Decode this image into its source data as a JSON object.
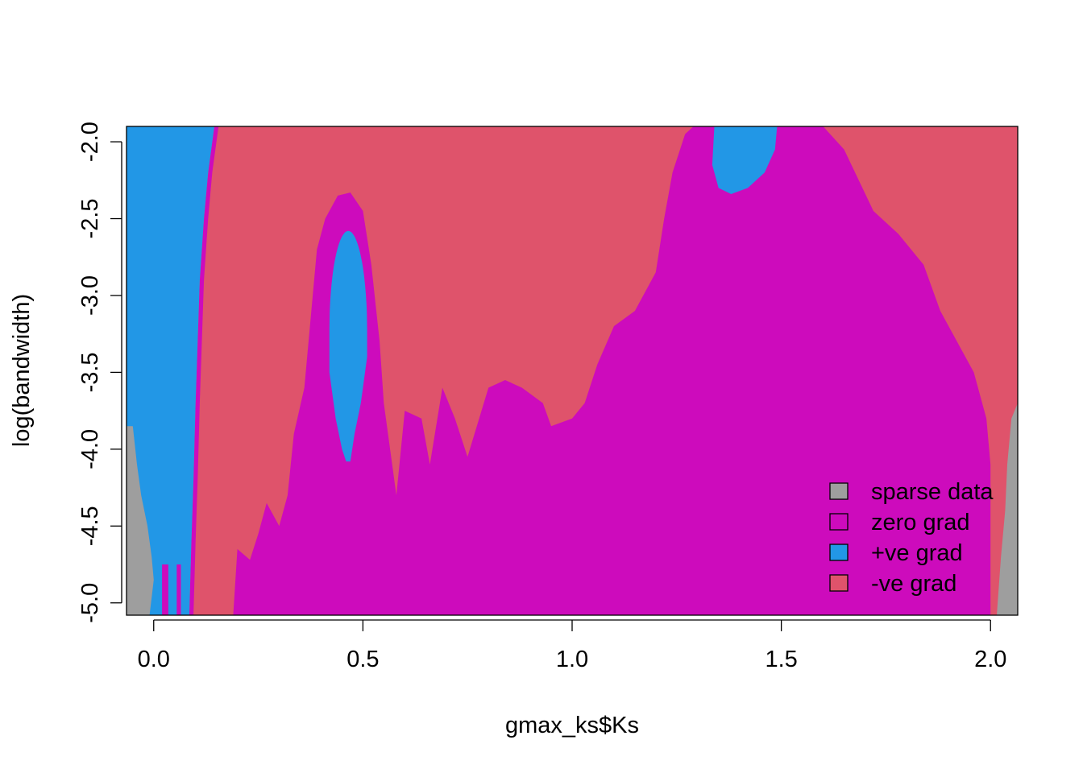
{
  "chart_data": {
    "type": "heatmap",
    "title": "",
    "xlabel": "gmax_ks$Ks",
    "ylabel": "log(bandwidth)",
    "xlim": [
      -0.065,
      2.065
    ],
    "ylim": [
      -5.08,
      -1.9
    ],
    "x_ticks": [
      0.0,
      0.5,
      1.0,
      1.5,
      2.0
    ],
    "x_tick_labels": [
      "0.0",
      "0.5",
      "1.0",
      "1.5",
      "2.0"
    ],
    "y_ticks": [
      -5.0,
      -4.5,
      -4.0,
      -3.5,
      -3.0,
      -2.5,
      -2.0
    ],
    "y_tick_labels": [
      "-5.0",
      "-4.5",
      "-4.0",
      "-3.5",
      "-3.0",
      "-2.5",
      "-2.0"
    ],
    "categories": [
      "sparse data",
      "zero grad",
      "+ve grad",
      "-ve grad"
    ],
    "colors": {
      "sparse data": "#9E9E9E",
      "zero grad": "#CD0BBC",
      "+ve grad": "#2297E6",
      "-ve grad": "#DF536B"
    },
    "legend": {
      "position": "bottom-right",
      "entries": [
        "sparse data",
        "zero grad",
        "+ve grad",
        "-ve grad"
      ]
    },
    "region_boundaries": {
      "sparse_left": [
        [
          -0.065,
          -3.85
        ],
        [
          -0.05,
          -3.85
        ],
        [
          -0.04,
          -4.1
        ],
        [
          -0.03,
          -4.3
        ],
        [
          -0.015,
          -4.5
        ],
        [
          -0.005,
          -4.7
        ],
        [
          0.0,
          -4.85
        ],
        [
          -0.01,
          -5.08
        ]
      ],
      "blue_left_right_edge": [
        [
          0.145,
          -1.9
        ],
        [
          0.13,
          -2.2
        ],
        [
          0.12,
          -2.5
        ],
        [
          0.11,
          -2.9
        ],
        [
          0.105,
          -3.3
        ],
        [
          0.1,
          -3.7
        ],
        [
          0.095,
          -4.2
        ],
        [
          0.09,
          -4.6
        ],
        [
          0.085,
          -5.08
        ]
      ],
      "blue_dome": {
        "center_x": 0.465,
        "center_y": -3.22,
        "half_width": 0.045,
        "y_top": -2.58,
        "y_bottom": -4.08
      },
      "blue_top_right": [
        [
          1.34,
          -1.9
        ],
        [
          1.49,
          -1.9
        ],
        [
          1.485,
          -2.05
        ],
        [
          1.46,
          -2.2
        ],
        [
          1.42,
          -2.3
        ],
        [
          1.38,
          -2.34
        ],
        [
          1.35,
          -2.3
        ],
        [
          1.335,
          -2.15
        ]
      ],
      "magenta_top_envelope": [
        [
          0.19,
          -5.08
        ],
        [
          0.2,
          -4.65
        ],
        [
          0.23,
          -4.72
        ],
        [
          0.25,
          -4.55
        ],
        [
          0.27,
          -4.35
        ],
        [
          0.3,
          -4.5
        ],
        [
          0.32,
          -4.3
        ],
        [
          0.335,
          -3.9
        ],
        [
          0.36,
          -3.6
        ],
        [
          0.37,
          -3.3
        ],
        [
          0.38,
          -3.0
        ],
        [
          0.39,
          -2.7
        ],
        [
          0.41,
          -2.5
        ],
        [
          0.44,
          -2.35
        ],
        [
          0.47,
          -2.33
        ],
        [
          0.5,
          -2.45
        ],
        [
          0.52,
          -2.8
        ],
        [
          0.54,
          -3.3
        ],
        [
          0.55,
          -3.7
        ],
        [
          0.58,
          -4.3
        ],
        [
          0.6,
          -3.75
        ],
        [
          0.64,
          -3.8
        ],
        [
          0.66,
          -4.1
        ],
        [
          0.69,
          -3.6
        ],
        [
          0.72,
          -3.8
        ],
        [
          0.75,
          -4.05
        ],
        [
          0.8,
          -3.6
        ],
        [
          0.84,
          -3.55
        ],
        [
          0.88,
          -3.6
        ],
        [
          0.93,
          -3.7
        ],
        [
          0.95,
          -3.85
        ],
        [
          1.0,
          -3.8
        ],
        [
          1.03,
          -3.7
        ],
        [
          1.06,
          -3.45
        ],
        [
          1.1,
          -3.2
        ],
        [
          1.15,
          -3.1
        ],
        [
          1.2,
          -2.85
        ],
        [
          1.22,
          -2.5
        ],
        [
          1.24,
          -2.2
        ],
        [
          1.27,
          -1.95
        ],
        [
          1.29,
          -1.9
        ],
        [
          1.6,
          -1.9
        ],
        [
          1.65,
          -2.05
        ],
        [
          1.72,
          -2.45
        ],
        [
          1.78,
          -2.6
        ],
        [
          1.84,
          -2.8
        ],
        [
          1.88,
          -3.1
        ],
        [
          1.92,
          -3.3
        ],
        [
          1.96,
          -3.5
        ],
        [
          1.99,
          -3.8
        ],
        [
          2.0,
          -4.1
        ],
        [
          2.0,
          -5.08
        ]
      ],
      "sparse_right": [
        [
          2.065,
          -3.7
        ],
        [
          2.05,
          -3.8
        ],
        [
          2.04,
          -4.1
        ],
        [
          2.035,
          -4.4
        ],
        [
          2.025,
          -4.7
        ],
        [
          2.015,
          -5.08
        ],
        [
          2.065,
          -5.08
        ]
      ]
    }
  }
}
